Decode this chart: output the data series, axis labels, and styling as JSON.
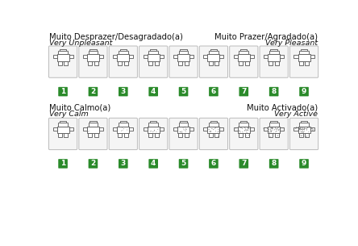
{
  "row1_left_top": "Muito Desprazer/Desagradado(a)",
  "row1_right_top": "Muito Prazer/Agradado(a)",
  "row1_left_sub": "Very Unpleasant",
  "row1_right_sub": "Very Pleasant",
  "row2_left_top": "Muito Calmo(a)",
  "row2_right_top": "Muito Activado(a)",
  "row2_left_sub": "Very Calm",
  "row2_right_sub": "Very Active",
  "n_figures": 9,
  "bg_color": "#ffffff",
  "box_facecolor": "#f5f5f5",
  "box_edgecolor": "#bbbbbb",
  "button_color": "#2a8a2a",
  "button_text_color": "#ffffff",
  "label_color": "#111111",
  "manikin_edge": "#555555",
  "manikin_face": "#ffffff",
  "font_size_top": 7.2,
  "font_size_sub": 6.8,
  "font_size_num": 6.5
}
